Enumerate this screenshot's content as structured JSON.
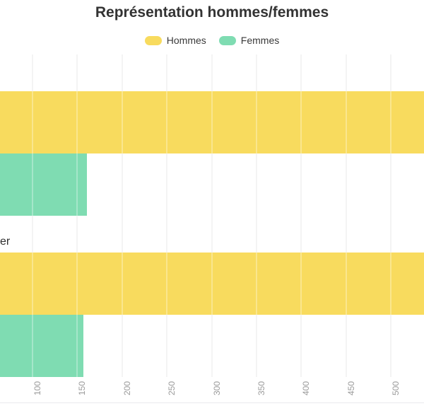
{
  "chart_data": {
    "type": "bar",
    "orientation": "horizontal",
    "title": "Représentation hommes/femmes",
    "legend_position": "top",
    "grid": true,
    "categories": [
      {
        "visible_label_fragment": ""
      },
      {
        "visible_label_fragment": "er"
      }
    ],
    "series": [
      {
        "name": "Hommes",
        "color": "#F8DB5E",
        "values": [
          537,
          537
        ],
        "clipped_at_right_edge": [
          true,
          true
        ]
      },
      {
        "name": "Femmes",
        "color": "#7FDCB2",
        "values": [
          161,
          157
        ],
        "clipped_at_right_edge": [
          false,
          false
        ]
      }
    ],
    "x_axis": {
      "ticks": [
        100,
        150,
        200,
        250,
        300,
        350,
        400,
        450,
        500
      ],
      "tick_labels": [
        "100",
        "150",
        "200",
        "250",
        "300",
        "350",
        "400",
        "450",
        "500"
      ],
      "tick_rotation_deg": 90,
      "visible_min": 64,
      "visible_max": 537
    },
    "colors": {
      "title_text": "#333333",
      "legend_text": "#3a3a3a",
      "tick_text": "#9a9a9a",
      "gridline": "#efefef",
      "bottom_border": "#e9e9ee"
    }
  }
}
